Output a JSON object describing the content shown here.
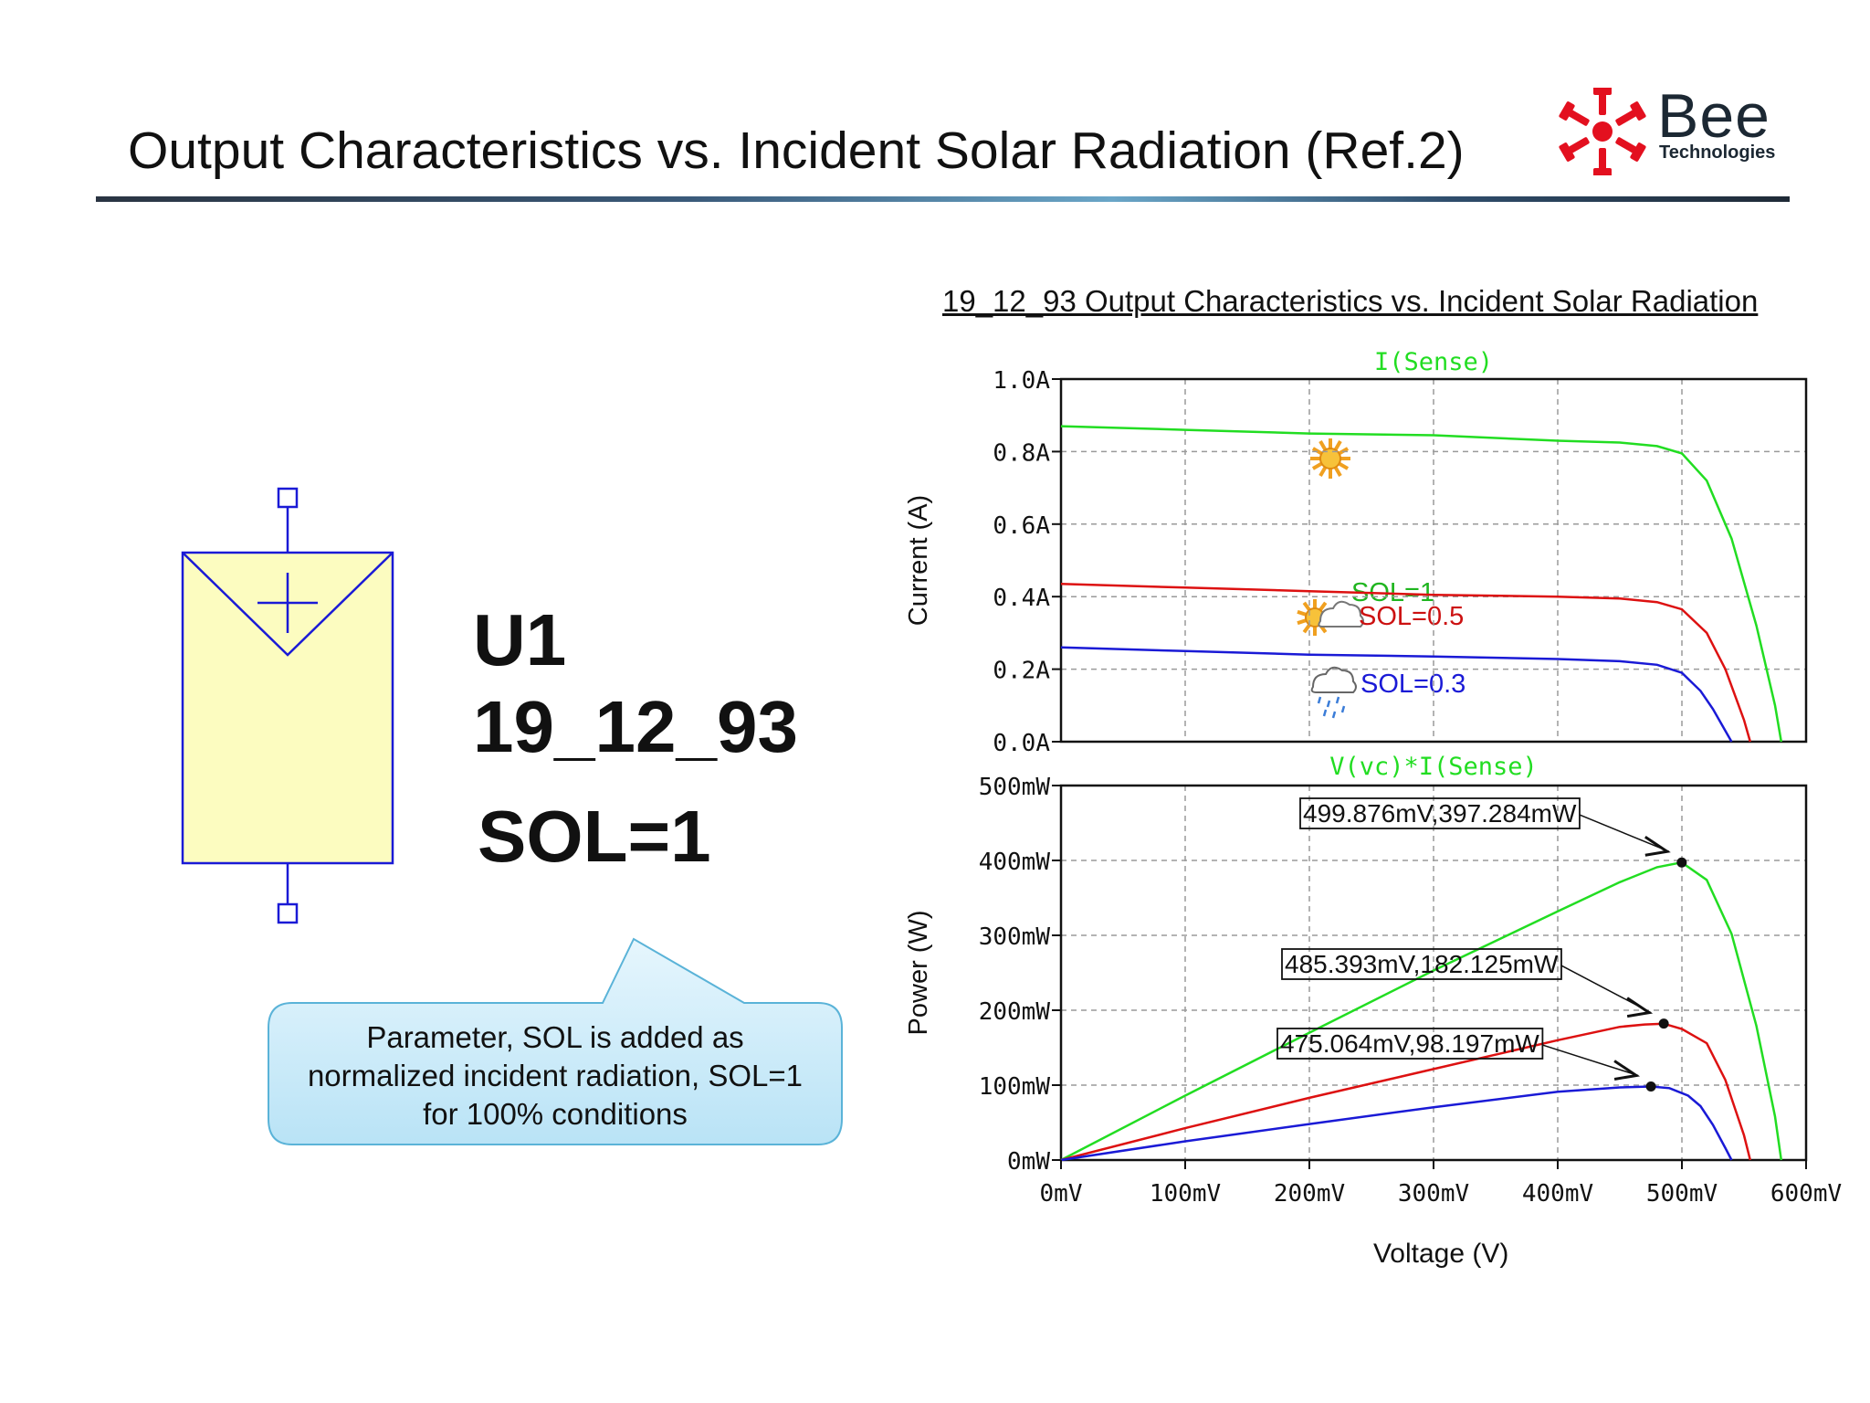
{
  "slide": {
    "title": "Output Characteristics vs. Incident Solar Radiation (Ref.2)"
  },
  "logo": {
    "word": "Bee",
    "sub": "Technologies",
    "color": "#e3101f"
  },
  "part": {
    "ref": "U1",
    "name": "19_12_93",
    "param": "SOL=1"
  },
  "callout": {
    "lines": [
      "Parameter, SOL is added as",
      "normalized incident radiation, SOL=1",
      "for 100% conditions"
    ]
  },
  "colors": {
    "green": "#22dd22",
    "red": "#dd1111",
    "blue": "#1a1ad6"
  },
  "chart_data": [
    {
      "type": "line",
      "title": "19_12_93 Output Characteristics vs. Incident Solar Radiation",
      "trace_label": "I(Sense)",
      "ylabel": "Current (A)",
      "xlabel": "Voltage (V)",
      "xlim": [
        0,
        600
      ],
      "ylim": [
        0,
        1.0
      ],
      "yticks": [
        "0.0A",
        "0.2A",
        "0.4A",
        "0.6A",
        "0.8A",
        "1.0A"
      ],
      "grid": true,
      "series": [
        {
          "name": "SOL=1",
          "color": "#22dd22",
          "x": [
            0,
            100,
            200,
            300,
            400,
            450,
            480,
            500,
            520,
            540,
            560,
            575,
            580
          ],
          "y": [
            0.87,
            0.86,
            0.85,
            0.845,
            0.83,
            0.825,
            0.815,
            0.795,
            0.72,
            0.56,
            0.32,
            0.1,
            0.0
          ]
        },
        {
          "name": "SOL=0.5",
          "color": "#dd1111",
          "x": [
            0,
            100,
            200,
            300,
            400,
            450,
            480,
            500,
            520,
            535,
            550,
            555
          ],
          "y": [
            0.435,
            0.425,
            0.415,
            0.405,
            0.4,
            0.395,
            0.385,
            0.365,
            0.3,
            0.2,
            0.06,
            0.0
          ]
        },
        {
          "name": "SOL=0.3",
          "color": "#1a1ad6",
          "x": [
            0,
            100,
            200,
            300,
            400,
            450,
            480,
            500,
            515,
            525,
            535,
            540
          ],
          "y": [
            0.26,
            0.25,
            0.24,
            0.235,
            0.228,
            0.222,
            0.212,
            0.19,
            0.14,
            0.09,
            0.03,
            0.0
          ]
        }
      ]
    },
    {
      "type": "line",
      "trace_label": "V(vc)*I(Sense)",
      "ylabel": "Power (W)",
      "xlabel": "Voltage (V)",
      "xlim": [
        0,
        600
      ],
      "ylim": [
        0,
        500
      ],
      "xticks": [
        "0mV",
        "100mV",
        "200mV",
        "300mV",
        "400mV",
        "500mV",
        "600mV"
      ],
      "yticks": [
        "0mW",
        "100mW",
        "200mW",
        "300mW",
        "400mW",
        "500mW"
      ],
      "grid": true,
      "series": [
        {
          "name": "SOL=1",
          "color": "#22dd22",
          "x": [
            0,
            100,
            200,
            300,
            400,
            450,
            480,
            499.876,
            520,
            540,
            560,
            575,
            580
          ],
          "y": [
            0,
            86,
            170,
            253,
            332,
            371,
            391,
            397.284,
            374,
            302,
            179,
            58,
            0
          ]
        },
        {
          "name": "SOL=0.5",
          "color": "#dd1111",
          "x": [
            0,
            100,
            200,
            300,
            400,
            450,
            470,
            485.393,
            500,
            520,
            535,
            550,
            555
          ],
          "y": [
            0,
            42.5,
            83,
            121.5,
            160,
            177.75,
            181,
            182.125,
            175,
            156,
            107,
            33,
            0
          ]
        },
        {
          "name": "SOL=0.3",
          "color": "#1a1ad6",
          "x": [
            0,
            100,
            200,
            300,
            400,
            450,
            475.064,
            490,
            505,
            515,
            525,
            535,
            540
          ],
          "y": [
            0,
            25,
            48,
            70.5,
            91.2,
            97,
            98.197,
            96,
            86,
            72,
            47,
            16,
            0
          ]
        }
      ],
      "annotations": [
        {
          "text": "499.876mV,397.284mW",
          "x": 499.876,
          "y": 397.284
        },
        {
          "text": "485.393mV,182.125mW",
          "x": 485.393,
          "y": 182.125
        },
        {
          "text": "475.064mV,98.197mW",
          "x": 475.064,
          "y": 98.197
        }
      ]
    }
  ]
}
